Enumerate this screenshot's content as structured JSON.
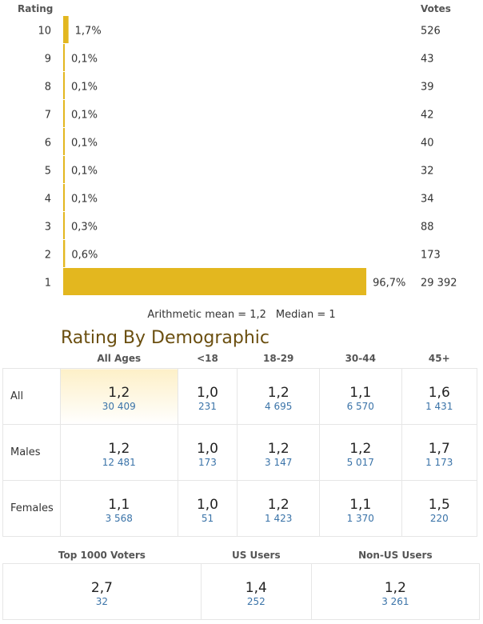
{
  "chart_data": {
    "type": "bar",
    "orientation": "horizontal",
    "xlabel": "Rating",
    "ylabel": "Votes",
    "categories": [
      "10",
      "9",
      "8",
      "7",
      "6",
      "5",
      "4",
      "3",
      "2",
      "1"
    ],
    "percent_values": [
      1.7,
      0.1,
      0.1,
      0.1,
      0.1,
      0.1,
      0.1,
      0.3,
      0.6,
      96.7
    ],
    "percent_labels": [
      "1,7%",
      "0,1%",
      "0,1%",
      "0,1%",
      "0,1%",
      "0,1%",
      "0,1%",
      "0,3%",
      "0,6%",
      "96,7%"
    ],
    "votes": [
      "526",
      "43",
      "39",
      "42",
      "40",
      "32",
      "34",
      "88",
      "173",
      "29 392"
    ],
    "xlim": [
      0,
      100
    ],
    "bar_color": "#e3b71f"
  },
  "summary": {
    "mean": "Arithmetic mean = 1,2",
    "median": "Median = 1"
  },
  "demographic": {
    "title": "Rating By Demographic",
    "columns": [
      "All Ages",
      "<18",
      "18-29",
      "30-44",
      "45+"
    ],
    "rows": [
      {
        "label": "All",
        "cells": [
          {
            "rating": "1,2",
            "votes": "30 409"
          },
          {
            "rating": "1,0",
            "votes": "231"
          },
          {
            "rating": "1,2",
            "votes": "4 695"
          },
          {
            "rating": "1,1",
            "votes": "6 570"
          },
          {
            "rating": "1,6",
            "votes": "1 431"
          }
        ]
      },
      {
        "label": "Males",
        "cells": [
          {
            "rating": "1,2",
            "votes": "12 481"
          },
          {
            "rating": "1,0",
            "votes": "173"
          },
          {
            "rating": "1,2",
            "votes": "3 147"
          },
          {
            "rating": "1,2",
            "votes": "5 017"
          },
          {
            "rating": "1,7",
            "votes": "1 173"
          }
        ]
      },
      {
        "label": "Females",
        "cells": [
          {
            "rating": "1,1",
            "votes": "3 568"
          },
          {
            "rating": "1,0",
            "votes": "51"
          },
          {
            "rating": "1,2",
            "votes": "1 423"
          },
          {
            "rating": "1,1",
            "votes": "1 370"
          },
          {
            "rating": "1,5",
            "votes": "220"
          }
        ]
      }
    ]
  },
  "top_groups": [
    {
      "label": "Top 1000 Voters",
      "rating": "2,7",
      "votes": "32"
    },
    {
      "label": "US Users",
      "rating": "1,4",
      "votes": "252"
    },
    {
      "label": "Non-US Users",
      "rating": "1,2",
      "votes": "3 261"
    }
  ],
  "colors": {
    "bar": "#e3b71f",
    "title": "#6b4f10",
    "vote_link": "#3a73a8",
    "highlight": "#fdf0c8"
  }
}
